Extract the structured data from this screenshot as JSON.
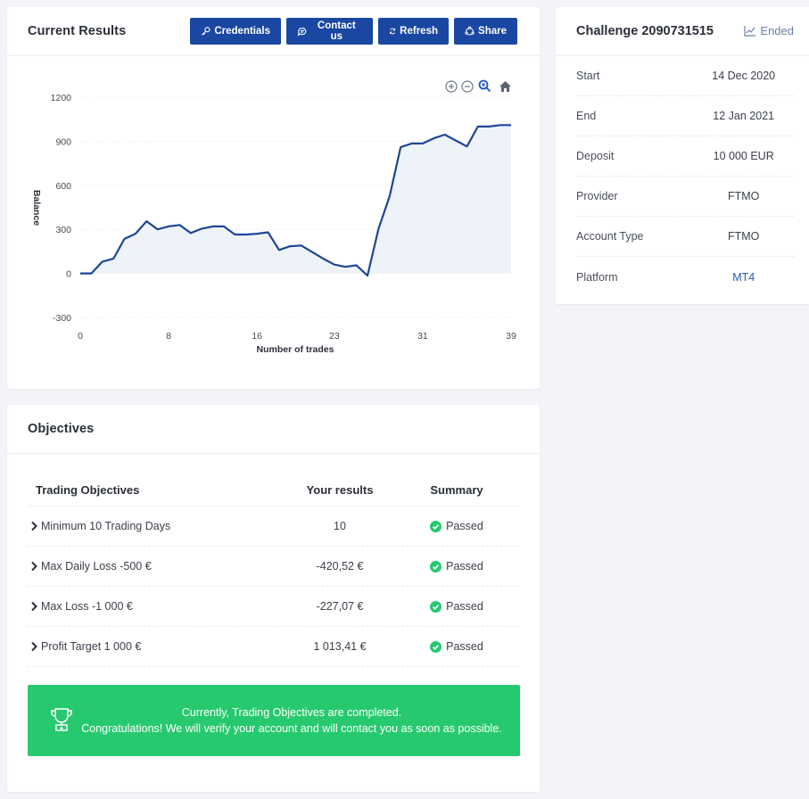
{
  "results": {
    "title": "Current Results",
    "buttons": {
      "credentials": "Credentials",
      "contact": "Contact us",
      "refresh": "Refresh",
      "share": "Share"
    }
  },
  "chart_data": {
    "type": "area",
    "xlabel": "Number of trades",
    "ylabel": "Balance",
    "xlim": [
      0,
      39
    ],
    "ylim": [
      -300,
      1200
    ],
    "x_ticks": [
      0,
      8,
      16,
      23,
      31,
      39
    ],
    "y_ticks": [
      1200,
      900,
      600,
      300,
      0,
      -300
    ],
    "grid": "horizontal",
    "colors": {
      "line": "#1e4694",
      "fill": "#eef3fa"
    },
    "x": [
      0,
      1,
      2,
      3,
      4,
      5,
      6,
      7,
      8,
      9,
      10,
      11,
      12,
      13,
      14,
      15,
      16,
      17,
      18,
      19,
      20,
      21,
      22,
      23,
      24,
      25,
      26,
      27,
      28,
      29,
      30,
      31,
      32,
      33,
      34,
      35,
      36,
      37,
      38,
      39
    ],
    "y": [
      0,
      0,
      80,
      100,
      235,
      270,
      355,
      300,
      320,
      330,
      275,
      305,
      320,
      320,
      265,
      265,
      270,
      280,
      160,
      185,
      190,
      145,
      100,
      60,
      45,
      55,
      -15,
      305,
      525,
      860,
      885,
      885,
      920,
      945,
      905,
      865,
      1000,
      1000,
      1010,
      1010
    ]
  },
  "chart_tools": {
    "zoom_in": "zoom-in-icon",
    "zoom_out": "zoom-out-icon",
    "zoom_select": "magnify-icon",
    "reset": "home-icon"
  },
  "challenge": {
    "title": "Challenge 2090731515",
    "status": "Ended",
    "rows": [
      {
        "label": "Start",
        "value": "14 Dec 2020"
      },
      {
        "label": "End",
        "value": "12 Jan 2021"
      },
      {
        "label": "Deposit",
        "value": "10 000 EUR"
      },
      {
        "label": "Provider",
        "value": "FTMO"
      },
      {
        "label": "Account Type",
        "value": "FTMO"
      },
      {
        "label": "Platform",
        "value": "MT4"
      }
    ]
  },
  "objectives": {
    "title": "Objectives",
    "headers": {
      "objective": "Trading Objectives",
      "result": "Your results",
      "summary": "Summary"
    },
    "rows": [
      {
        "objective": "Minimum 10 Trading Days",
        "result": "10",
        "summary": "Passed"
      },
      {
        "objective": "Max Daily Loss -500 €",
        "result": "-420,52 €",
        "summary": "Passed"
      },
      {
        "objective": "Max Loss -1 000 €",
        "result": "-227,07 €",
        "summary": "Passed"
      },
      {
        "objective": "Profit Target 1 000 €",
        "result": "1 013,41 €",
        "summary": "Passed"
      }
    ],
    "banner_line1": "Currently, Trading Objectives are completed.",
    "banner_line2": "Congratulations! We will verify your account and will contact you as soon as possible."
  }
}
